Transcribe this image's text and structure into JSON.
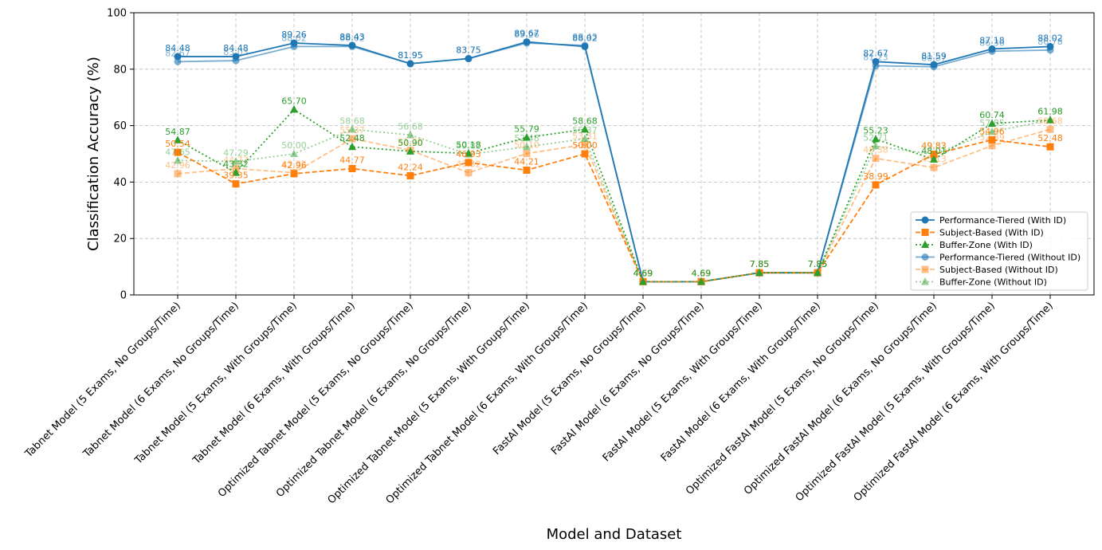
{
  "chart_data": {
    "type": "line",
    "title": "",
    "xlabel": "Model and Dataset",
    "ylabel": "Classification Accuracy (%)",
    "ylim": [
      0,
      100
    ],
    "yticks": [
      0,
      20,
      40,
      60,
      80,
      100
    ],
    "grid": true,
    "legend_position": "lower-right",
    "categories": [
      "Tabnet Model (5 Exams, No Groups/Time)",
      "Tabnet Model (6 Exams, No Groups/Time)",
      "Tabnet Model (5 Exams, With Groups/Time)",
      "Tabnet Model (6 Exams, With Groups/Time)",
      "Optimized Tabnet Model (5 Exams, No Groups/Time)",
      "Optimized Tabnet Model (6 Exams, No Groups/Time)",
      "Optimized Tabnet Model (5 Exams, With Groups/Time)",
      "Optimized Tabnet Model (6 Exams, With Groups/Time)",
      "FastAI Model (5 Exams, No Groups/Time)",
      "FastAI Model (6 Exams, No Groups/Time)",
      "FastAI Model (5 Exams, With Groups/Time)",
      "FastAI Model (6 Exams, With Groups/Time)",
      "Optimized FastAI Model (5 Exams, No Groups/Time)",
      "Optimized FastAI Model (6 Exams, No Groups/Time)",
      "Optimized FastAI Model (5 Exams, With Groups/Time)",
      "Optimized FastAI Model (6 Exams, With Groups/Time)"
    ],
    "series": [
      {
        "name": "Performance-Tiered (With ID)",
        "color": "#1f77b4",
        "opacity": 1,
        "marker": "circle",
        "dash": "solid",
        "values": [
          84.48,
          84.48,
          89.26,
          88.43,
          81.95,
          83.75,
          89.67,
          88.02,
          4.69,
          4.69,
          7.85,
          7.85,
          82.67,
          81.59,
          87.18,
          88.02
        ],
        "labels": [
          "84.48",
          "84.48",
          "89.26",
          "88.43",
          "81.95",
          "83.75",
          "89.67",
          "88.02",
          "4.69",
          "4.69",
          "7.85",
          "7.85",
          "82.67",
          "81.59",
          "87.18",
          "88.02"
        ]
      },
      {
        "name": "Subject-Based (With ID)",
        "color": "#ff7f0e",
        "opacity": 1,
        "marker": "square",
        "dash": "dashed",
        "values": [
          50.54,
          39.35,
          42.96,
          44.77,
          42.24,
          46.93,
          44.21,
          50.0,
          4.69,
          4.69,
          7.85,
          7.85,
          38.99,
          49.83,
          54.96,
          52.48
        ],
        "labels": [
          "50.54",
          "39.35",
          "42.96",
          "44.77",
          "42.24",
          "46.93",
          "44.21",
          "50.00",
          "4.69",
          "4.69",
          "7.85",
          "7.85",
          "38.99",
          "49.83",
          "54.96",
          "52.48"
        ]
      },
      {
        "name": "Buffer-Zone (With ID)",
        "color": "#2ca02c",
        "opacity": 1,
        "marker": "triangle",
        "dash": "dotted",
        "values": [
          54.87,
          43.32,
          65.7,
          52.48,
          50.9,
          50.18,
          55.79,
          58.68,
          4.69,
          4.69,
          7.85,
          7.85,
          55.23,
          48.01,
          60.74,
          61.98
        ],
        "labels": [
          "54.87",
          "43.32",
          "65.70",
          "52.48",
          "50.90",
          "50.18",
          "55.79",
          "58.68",
          "4.69",
          "4.69",
          "7.85",
          "7.85",
          "55.23",
          "48.01",
          "60.74",
          "61.98"
        ]
      },
      {
        "name": "Performance-Tiered (Without ID)",
        "color": "#1f77b4",
        "opacity": 0.6,
        "marker": "circle",
        "dash": "solid",
        "values": [
          82.67,
          83.03,
          88.02,
          88.02,
          81.95,
          83.75,
          89.26,
          88.43,
          4.69,
          4.69,
          7.85,
          7.85,
          81.23,
          80.87,
          86.36,
          86.78
        ],
        "labels": [
          "82.67",
          "83.03",
          "88.02",
          "88.02",
          "81.95",
          "83.75",
          "89.26",
          "88.43",
          "4.69",
          "4.69",
          "7.85",
          "7.85",
          "81.23",
          "80.87",
          "86.36",
          "86.78"
        ]
      },
      {
        "name": "Subject-Based (Without ID)",
        "color": "#ff7f0e",
        "opacity": 0.5,
        "marker": "square",
        "dash": "dashed",
        "values": [
          42.96,
          44.77,
          43.32,
          55.37,
          51.26,
          43.32,
          50.1,
          53.31,
          4.69,
          4.69,
          7.85,
          7.85,
          48.38,
          45.13,
          52.89,
          58.68
        ],
        "labels": [
          "42.96",
          "44.77",
          "43.32",
          "55.37",
          "51.26",
          "43.32",
          "50.10",
          "53.31",
          "4.69",
          "4.69",
          "7.85",
          "7.85",
          "48.38",
          "45.13",
          "52.89",
          "58.68"
        ]
      },
      {
        "name": "Buffer-Zone (Without ID)",
        "color": "#2ca02c",
        "opacity": 0.5,
        "marker": "triangle",
        "dash": "dotted",
        "values": [
          47.65,
          47.29,
          50.0,
          58.68,
          56.68,
          49.82,
          52.48,
          55.37,
          4.69,
          4.69,
          7.85,
          7.85,
          52.71,
          49.82,
          57.85,
          61.98
        ],
        "labels": [
          "47.65",
          "47.29",
          "50.00",
          "58.68",
          "56.68",
          "49.82",
          "52.48",
          "55.37",
          "4.69",
          "4.69",
          "7.85",
          "7.85",
          "52.71",
          "49.82",
          "57.85",
          "61.98"
        ]
      }
    ]
  }
}
